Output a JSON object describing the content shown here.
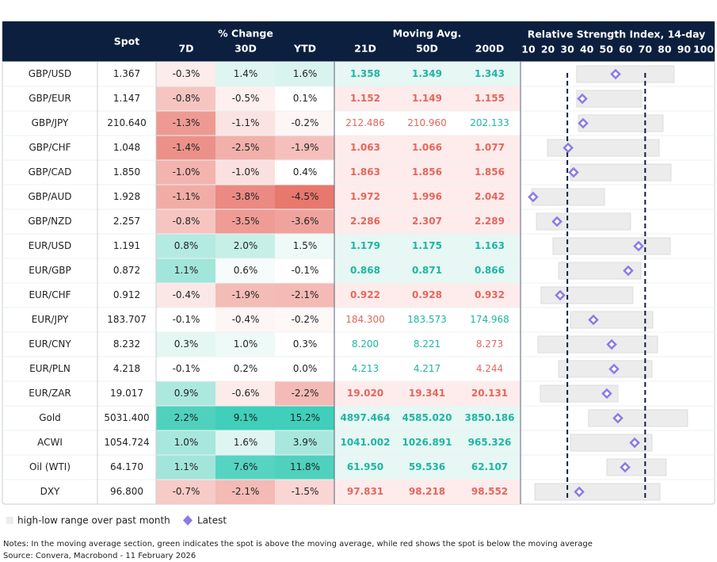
{
  "header": {
    "spot": "Spot",
    "change": "% Change",
    "ma": "Moving Avg.",
    "rsi": "Relative Strength Index, 14-day",
    "columns": [
      "7D",
      "30D",
      "YTD",
      "21D",
      "50D",
      "200D"
    ]
  },
  "rsi_axis": {
    "xlim": [
      10,
      100
    ],
    "xticks": [
      10,
      20,
      30,
      40,
      50,
      60,
      70,
      80,
      90,
      100
    ],
    "reference_lines": [
      30,
      70
    ]
  },
  "rows": [
    {
      "label": "GBP/USD",
      "spot": "1.367",
      "change": [
        "-0.3%",
        "1.4%",
        "1.6%"
      ],
      "change_colors": [
        "#fcecea",
        "#dff5f1",
        "#d9f4ef"
      ],
      "ma": [
        "1.358",
        "1.349",
        "1.343"
      ],
      "rsi_range": [
        34.8,
        84.9
      ],
      "rsi_latest": 54.8
    },
    {
      "label": "GBP/EUR",
      "spot": "1.147",
      "change": [
        "-0.8%",
        "-0.5%",
        "0.1%"
      ],
      "change_colors": [
        "#f6c5c1",
        "#fdf0ef",
        "#ffffff"
      ],
      "ma": [
        "1.152",
        "1.149",
        "1.155"
      ],
      "rsi_range": [
        34.8,
        68.2
      ],
      "rsi_latest": 37.7
    },
    {
      "label": "GBP/JPY",
      "spot": "210.640",
      "change": [
        "-1.3%",
        "-1.1%",
        "-0.2%"
      ],
      "change_colors": [
        "#ee9a93",
        "#fbe3e1",
        "#fef6f5"
      ],
      "ma": [
        "212.486",
        "210.960",
        "202.133"
      ],
      "rsi_range": [
        35.7,
        79.2
      ],
      "rsi_latest": 38.1
    },
    {
      "label": "GBP/CHF",
      "spot": "1.048",
      "change": [
        "-1.4%",
        "-2.5%",
        "-1.9%"
      ],
      "change_colors": [
        "#ec918a",
        "#f2b0aa",
        "#f5c0bb"
      ],
      "ma": [
        "1.063",
        "1.066",
        "1.077"
      ],
      "rsi_range": [
        19.8,
        77.2
      ],
      "rsi_latest": 30.4
    },
    {
      "label": "GBP/CAD",
      "spot": "1.850",
      "change": [
        "-1.0%",
        "-1.0%",
        "0.4%"
      ],
      "change_colors": [
        "#f3b3ae",
        "#fae0de",
        "#ffffff"
      ],
      "ma": [
        "1.863",
        "1.856",
        "1.856"
      ],
      "rsi_range": [
        31.6,
        83.3
      ],
      "rsi_latest": 33.2
    },
    {
      "label": "GBP/AUD",
      "spot": "1.928",
      "change": [
        "-1.1%",
        "-3.8%",
        "-4.5%"
      ],
      "change_colors": [
        "#f1aca6",
        "#ea8a82",
        "#e8776e"
      ],
      "ma": [
        "1.972",
        "1.996",
        "2.042"
      ],
      "rsi_range": [
        11.6,
        49.1
      ],
      "rsi_latest": 12.4
    },
    {
      "label": "GBP/NZD",
      "spot": "2.257",
      "change": [
        "-0.8%",
        "-3.5%",
        "-3.6%"
      ],
      "change_colors": [
        "#f6c5c1",
        "#ee9c95",
        "#f0a39d"
      ],
      "ma": [
        "2.286",
        "2.307",
        "2.289"
      ],
      "rsi_range": [
        14.1,
        62.5
      ],
      "rsi_latest": 24.7
    },
    {
      "label": "EUR/USD",
      "spot": "1.191",
      "change": [
        "0.8%",
        "2.0%",
        "1.5%"
      ],
      "change_colors": [
        "#b3eae1",
        "#c6efe8",
        "#eefaf8"
      ],
      "ma": [
        "1.179",
        "1.175",
        "1.163"
      ],
      "rsi_range": [
        22.6,
        82.9
      ],
      "rsi_latest": 66.6
    },
    {
      "label": "EUR/GBP",
      "spot": "0.872",
      "change": [
        "1.1%",
        "0.6%",
        "-0.1%"
      ],
      "change_colors": [
        "#a2e5db",
        "#f6fcfb",
        "#ffffff"
      ],
      "ma": [
        "0.868",
        "0.871",
        "0.866"
      ],
      "rsi_range": [
        25.5,
        67.8
      ],
      "rsi_latest": 61.3
    },
    {
      "label": "EUR/CHF",
      "spot": "0.912",
      "change": [
        "-0.4%",
        "-1.9%",
        "-2.1%"
      ],
      "change_colors": [
        "#fbe8e6",
        "#f4bcb7",
        "#f4bab5"
      ],
      "ma": [
        "0.922",
        "0.928",
        "0.932"
      ],
      "rsi_range": [
        16.5,
        63.7
      ],
      "rsi_latest": 26.3
    },
    {
      "label": "EUR/JPY",
      "spot": "183.707",
      "change": [
        "-0.1%",
        "-0.4%",
        "-0.2%"
      ],
      "change_colors": [
        "#ffffff",
        "#fef6f5",
        "#fef8f7"
      ],
      "ma": [
        "184.300",
        "183.573",
        "174.968"
      ],
      "rsi_range": [
        31.6,
        73.9
      ],
      "rsi_latest": 43.4
    },
    {
      "label": "EUR/CNY",
      "spot": "8.232",
      "change": [
        "0.3%",
        "1.0%",
        "0.3%"
      ],
      "change_colors": [
        "#e4f7f3",
        "#eefaf8",
        "#ffffff"
      ],
      "ma": [
        "8.200",
        "8.221",
        "8.273"
      ],
      "rsi_range": [
        14.9,
        76.4
      ],
      "rsi_latest": 52.8
    },
    {
      "label": "EUR/PLN",
      "spot": "4.218",
      "change": [
        "-0.1%",
        "0.2%",
        "0.0%"
      ],
      "change_colors": [
        "#ffffff",
        "#ffffff",
        "#ffffff"
      ],
      "ma": [
        "4.213",
        "4.217",
        "4.244"
      ],
      "rsi_range": [
        25.5,
        73.5
      ],
      "rsi_latest": 54.0
    },
    {
      "label": "EUR/ZAR",
      "spot": "19.017",
      "change": [
        "0.9%",
        "-0.6%",
        "-2.2%"
      ],
      "change_colors": [
        "#ade8df",
        "#fcebe9",
        "#f4bab5"
      ],
      "ma": [
        "19.020",
        "19.341",
        "20.131"
      ],
      "rsi_range": [
        16.1,
        56.0
      ],
      "rsi_latest": 50.3
    },
    {
      "label": "Gold",
      "spot": "5031.400",
      "change": [
        "2.2%",
        "9.1%",
        "15.2%"
      ],
      "change_colors": [
        "#4fd1be",
        "#3fcfba",
        "#3fcfba"
      ],
      "ma": [
        "4897.464",
        "4585.020",
        "3850.186"
      ],
      "rsi_range": [
        40.9,
        91.8
      ],
      "rsi_latest": 56.0
    },
    {
      "label": "ACWI",
      "spot": "1054.724",
      "change": [
        "1.0%",
        "1.6%",
        "3.9%"
      ],
      "change_colors": [
        "#a7e7dd",
        "#dff5f1",
        "#a7e7dd"
      ],
      "ma": [
        "1041.002",
        "1026.891",
        "965.326"
      ],
      "rsi_range": [
        31.6,
        73.5
      ],
      "rsi_latest": 64.6
    },
    {
      "label": "Oil (WTI)",
      "spot": "64.170",
      "change": [
        "1.1%",
        "7.6%",
        "11.8%"
      ],
      "change_colors": [
        "#a2e5db",
        "#56d4c2",
        "#4fd1be"
      ],
      "ma": [
        "61.950",
        "59.536",
        "62.107"
      ],
      "rsi_range": [
        50.3,
        80.8
      ],
      "rsi_latest": 59.7
    },
    {
      "label": "DXY",
      "spot": "96.800",
      "change": [
        "-0.7%",
        "-2.1%",
        "-1.5%"
      ],
      "change_colors": [
        "#f7cbc7",
        "#f4bab5",
        "#f9d6d3"
      ],
      "ma": [
        "97.831",
        "98.218",
        "98.552"
      ],
      "rsi_range": [
        13.3,
        77.6
      ],
      "rsi_latest": 36.1
    }
  ],
  "legend": {
    "range": "high-low range over past month",
    "latest": "Latest"
  },
  "notes": [
    "Notes: In the moving average section, green indicates the spot is above the moving average, while red shows the spot is below the moving average",
    "Source: Convera, Macrobond - 11 February 2026"
  ]
}
